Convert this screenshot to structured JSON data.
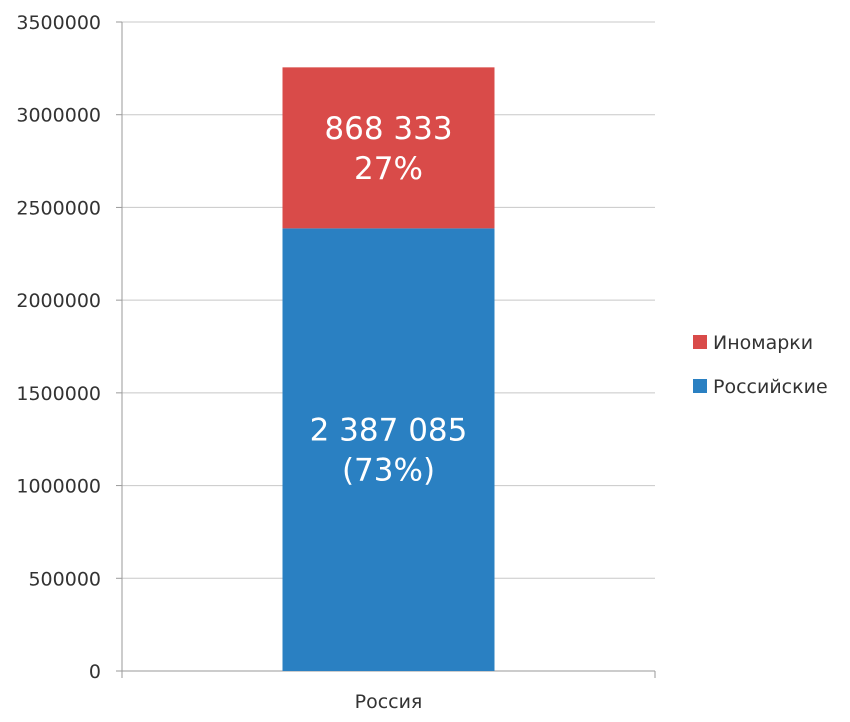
{
  "chart_data": {
    "type": "bar",
    "stacked": true,
    "categories": [
      "Россия"
    ],
    "series": [
      {
        "name": "Российские",
        "values": [
          2387085
        ],
        "color": "#2A80C2",
        "label_lines": [
          "2 387 085",
          "(73%)"
        ]
      },
      {
        "name": "Иномарки",
        "values": [
          868333
        ],
        "color": "#D94B49",
        "label_lines": [
          "868 333",
          "27%"
        ]
      }
    ],
    "ylim": [
      0,
      3500000
    ],
    "yticks": [
      "0",
      "500000",
      "1000000",
      "1500000",
      "2000000",
      "2500000",
      "3000000",
      "3500000"
    ],
    "legend": {
      "position": "right",
      "items": [
        "Иномарки",
        "Российские"
      ]
    },
    "grid": true
  }
}
